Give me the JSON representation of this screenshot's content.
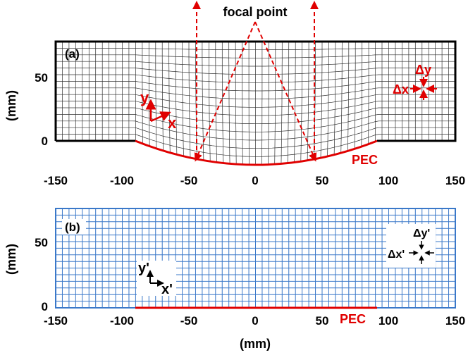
{
  "panel_a": {
    "label": "(a)",
    "annotation_focal": "focal point",
    "annotation_pec": "PEC",
    "axis_y_sym": "y",
    "axis_x_sym": "x",
    "delta_y": "Δy",
    "delta_x": "Δx",
    "ylabel": "(mm)",
    "x_ticks": [
      "-150",
      "-100",
      "-50",
      "0",
      "50",
      "100",
      "150"
    ],
    "y_ticks": [
      "50",
      "0"
    ]
  },
  "panel_b": {
    "label": "(b)",
    "annotation_pec": "PEC",
    "axis_y_sym": "y'",
    "axis_x_sym": "x'",
    "delta_y": "Δy'",
    "delta_x": "Δx'",
    "ylabel": "(mm)",
    "xlabel": "(mm)",
    "x_ticks": [
      "-150",
      "-100",
      "-50",
      "0",
      "50",
      "100",
      "150"
    ],
    "y_ticks": [
      "50",
      "0"
    ]
  },
  "colors": {
    "deformed_grid": "#333333",
    "uniform_grid": "#3a78c9",
    "pec": "#e00000",
    "rays": "#e00000"
  },
  "chart_data": [
    {
      "type": "diagram",
      "panel": "(a)",
      "x_range": [
        -150,
        150
      ],
      "y_range": [
        -20,
        75
      ],
      "pec_curve_x_extent": [
        -90,
        90
      ],
      "pec_curve_min_y": -20,
      "focal_point": [
        0,
        85
      ]
    },
    {
      "type": "diagram",
      "panel": "(b)",
      "x_range": [
        -150,
        150
      ],
      "y_range": [
        0,
        75
      ],
      "pec_x_extent": [
        -90,
        90
      ]
    }
  ]
}
